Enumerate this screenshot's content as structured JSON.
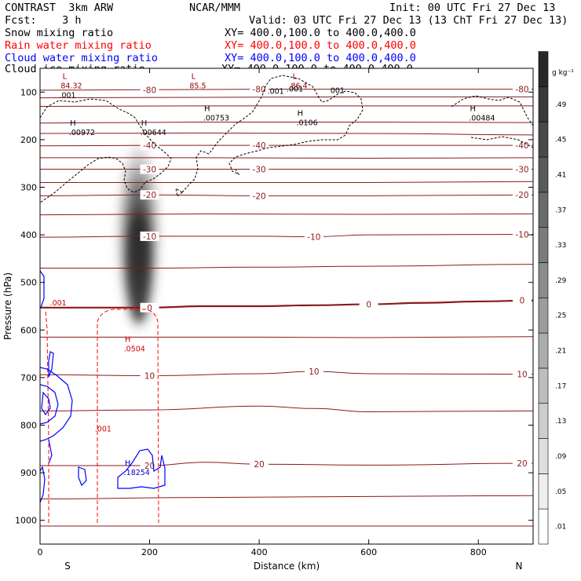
{
  "header": {
    "model": "CONTRAST  3km ARW",
    "center": "NCAR/MMM",
    "init": "Init: 00 UTC Fri 27 Dec 13",
    "fcst": "Fcst:    3 h",
    "valid": "Valid: 03 UTC Fri 27 Dec 13 (13 ChT Fri 27 Dec 13)",
    "fields": [
      {
        "label": "Snow mixing ratio",
        "xy": "XY= 400.0,100.0 to 400.0,400.0",
        "color": "#000000"
      },
      {
        "label": "Rain water mixing ratio",
        "xy": "XY= 400.0,100.0 to 400.0,400.0",
        "color": "#ff0000"
      },
      {
        "label": "Cloud water mixing ratio",
        "xy": "XY= 400.0,100.0 to 400.0,400.0",
        "color": "#0000ff"
      },
      {
        "label": "Cloud ice mixing ratio",
        "xy": "XY= 400.0,100.0 to 400.0,400.0",
        "color": "#000000"
      }
    ]
  },
  "chart_data": {
    "type": "contour-cross-section",
    "xlabel": "Distance (km)",
    "ylabel": "Pressure (hPa)",
    "xlim": [
      0,
      900
    ],
    "ylim": [
      1050,
      50
    ],
    "x_ticks": [
      0,
      200,
      400,
      600,
      800
    ],
    "x_tick_labels": [
      "0",
      "200",
      "400",
      "600",
      "800"
    ],
    "y_ticks": [
      100,
      200,
      300,
      400,
      500,
      600,
      700,
      800,
      900,
      1000
    ],
    "y_tick_labels": [
      "100",
      "200",
      "300",
      "400",
      "500",
      "600",
      "700",
      "800",
      "900",
      "1000"
    ],
    "x_end_labels": [
      "S",
      "N"
    ],
    "colorbar": {
      "unit": "g kg⁻¹",
      "levels": [
        0.01,
        0.05,
        0.09,
        0.13,
        0.17,
        0.21,
        0.25,
        0.29,
        0.33,
        0.37,
        0.41,
        0.45,
        0.49
      ],
      "labels": [
        ".01",
        ".05",
        ".09",
        ".13",
        ".17",
        ".21",
        ".25",
        ".29",
        ".33",
        ".37",
        ".41",
        ".45",
        ".49"
      ]
    },
    "temperature_contours": [
      {
        "value": -80,
        "label": "-80",
        "points": [
          [
            0,
            96
          ],
          [
            200,
            95
          ],
          [
            400,
            94
          ],
          [
            600,
            94
          ],
          [
            900,
            94
          ]
        ]
      },
      {
        "value": -70,
        "label": "",
        "points": [
          [
            0,
            112
          ],
          [
            300,
            111
          ],
          [
            600,
            110
          ],
          [
            900,
            110
          ]
        ]
      },
      {
        "value": -60,
        "label": "",
        "points": [
          [
            0,
            130
          ],
          [
            300,
            129
          ],
          [
            600,
            129
          ],
          [
            900,
            129
          ]
        ]
      },
      {
        "value": -50,
        "label": "",
        "points": [
          [
            0,
            165
          ],
          [
            300,
            163
          ],
          [
            600,
            163
          ],
          [
            900,
            164
          ]
        ]
      },
      {
        "value": -45,
        "label": "",
        "points": [
          [
            0,
            187
          ],
          [
            300,
            186
          ],
          [
            600,
            187
          ],
          [
            900,
            190
          ]
        ]
      },
      {
        "value": -40,
        "label": "-40",
        "points": [
          [
            0,
            213
          ],
          [
            200,
            212
          ],
          [
            400,
            212
          ],
          [
            600,
            212
          ],
          [
            900,
            212
          ]
        ]
      },
      {
        "value": -35,
        "label": "",
        "points": [
          [
            0,
            238
          ],
          [
            300,
            238
          ],
          [
            600,
            239
          ],
          [
            900,
            238
          ]
        ]
      },
      {
        "value": -30,
        "label": "-30",
        "points": [
          [
            0,
            262
          ],
          [
            200,
            262
          ],
          [
            400,
            262
          ],
          [
            600,
            262
          ],
          [
            900,
            262
          ]
        ]
      },
      {
        "value": -25,
        "label": "",
        "points": [
          [
            0,
            290
          ],
          [
            300,
            290
          ],
          [
            600,
            290
          ],
          [
            900,
            288
          ]
        ]
      },
      {
        "value": -20,
        "label": "-20",
        "points": [
          [
            0,
            318
          ],
          [
            200,
            316
          ],
          [
            400,
            318
          ],
          [
            600,
            318
          ],
          [
            900,
            316
          ]
        ]
      },
      {
        "value": -15,
        "label": "",
        "points": [
          [
            0,
            358
          ],
          [
            300,
            356
          ],
          [
            600,
            357
          ],
          [
            900,
            356
          ]
        ]
      },
      {
        "value": -10,
        "label": "-10",
        "points": [
          [
            0,
            405
          ],
          [
            200,
            403
          ],
          [
            400,
            403
          ],
          [
            500,
            404
          ],
          [
            600,
            400
          ],
          [
            900,
            399
          ]
        ]
      },
      {
        "value": -5,
        "label": "",
        "points": [
          [
            0,
            470
          ],
          [
            200,
            470
          ],
          [
            400,
            468
          ],
          [
            600,
            466
          ],
          [
            900,
            462
          ]
        ]
      },
      {
        "value": 0,
        "label": "0",
        "points": [
          [
            0,
            553
          ],
          [
            100,
            553
          ],
          [
            200,
            553
          ],
          [
            300,
            550
          ],
          [
            400,
            550
          ],
          [
            500,
            548
          ],
          [
            600,
            546
          ],
          [
            700,
            543
          ],
          [
            800,
            540
          ],
          [
            900,
            538
          ]
        ]
      },
      {
        "value": 5,
        "label": "",
        "points": [
          [
            0,
            615
          ],
          [
            200,
            615
          ],
          [
            400,
            615
          ],
          [
            600,
            616
          ],
          [
            900,
            614
          ]
        ]
      },
      {
        "value": 10,
        "label": "10",
        "points": [
          [
            0,
            694
          ],
          [
            200,
            696
          ],
          [
            400,
            692
          ],
          [
            500,
            687
          ],
          [
            600,
            692
          ],
          [
            900,
            693
          ]
        ]
      },
      {
        "value": 15,
        "label": "",
        "points": [
          [
            0,
            770
          ],
          [
            200,
            768
          ],
          [
            400,
            760
          ],
          [
            500,
            765
          ],
          [
            600,
            772
          ],
          [
            900,
            770
          ]
        ]
      },
      {
        "value": 20,
        "label": "20",
        "points": [
          [
            0,
            885
          ],
          [
            200,
            885
          ],
          [
            300,
            878
          ],
          [
            400,
            882
          ],
          [
            600,
            884
          ],
          [
            900,
            880
          ]
        ]
      },
      {
        "value": 25,
        "label": "",
        "points": [
          [
            0,
            955
          ],
          [
            300,
            952
          ],
          [
            600,
            950
          ],
          [
            900,
            948
          ]
        ]
      },
      {
        "value": 30,
        "label": "",
        "points": [
          [
            0,
            1012
          ],
          [
            300,
            1012
          ],
          [
            600,
            1012
          ],
          [
            900,
            1012
          ]
        ]
      }
    ],
    "extrema": [
      {
        "type": "L",
        "value": "84.32",
        "x": 45,
        "p": 82,
        "color": "#990000"
      },
      {
        "type": "L",
        "value": "85.5",
        "x": 280,
        "p": 82,
        "color": "#990000"
      },
      {
        "type": "L",
        "value": "86.4",
        "x": 465,
        "p": 82,
        "color": "#990000"
      },
      {
        "type": "H",
        "value": ".00972",
        "x": 60,
        "p": 180,
        "color": "#000000"
      },
      {
        "type": "H",
        "value": ".00644",
        "x": 190,
        "p": 180,
        "color": "#000000"
      },
      {
        "type": "H",
        "value": ".00753",
        "x": 305,
        "p": 150,
        "color": "#000000"
      },
      {
        "type": "H",
        "value": ".0106",
        "x": 475,
        "p": 160,
        "color": "#000000"
      },
      {
        "type": "H",
        "value": ".00484",
        "x": 790,
        "p": 150,
        "color": "#000000"
      },
      {
        "type": "H",
        "value": ".0504",
        "x": 160,
        "p": 635,
        "color": "#cc0000"
      },
      {
        "type": "H",
        "value": ".18254",
        "x": 160,
        "p": 895,
        "color": "#0000cc"
      }
    ],
    "field_labels": [
      {
        "text": ".001",
        "x": 35,
        "p": 112,
        "color": "#000000"
      },
      {
        "text": ".001",
        "x": 415,
        "p": 104,
        "color": "#000000"
      },
      {
        "text": ".001",
        "x": 450,
        "p": 99,
        "color": "#000000"
      },
      {
        "text": "001",
        "x": 530,
        "p": 102,
        "color": "#000000"
      },
      {
        "text": ".001",
        "x": 18,
        "p": 548,
        "color": "#cc0000"
      },
      {
        "text": ".001",
        "x": 100,
        "p": 813,
        "color": "#cc0000"
      }
    ],
    "snow_max": {
      "x": 180,
      "p": 470,
      "value": 0.45
    }
  }
}
